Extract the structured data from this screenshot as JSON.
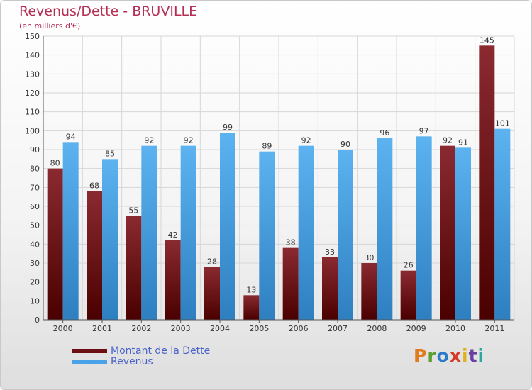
{
  "chart_data": {
    "type": "bar",
    "title": "Revenus/Dette - BRUVILLE",
    "subtitle": "(en milliers d'€)",
    "categories": [
      "2000",
      "2001",
      "2002",
      "2003",
      "2004",
      "2005",
      "2006",
      "2007",
      "2008",
      "2009",
      "2010",
      "2011"
    ],
    "series": [
      {
        "name": "Montant de la Dette",
        "color": "#7a1a1a",
        "values": [
          80,
          68,
          55,
          42,
          28,
          13,
          38,
          33,
          30,
          26,
          92,
          145
        ]
      },
      {
        "name": "Revenus",
        "color": "#4aa3e8",
        "values": [
          94,
          85,
          92,
          92,
          99,
          89,
          92,
          90,
          96,
          97,
          91,
          101
        ]
      }
    ],
    "ylim": [
      0,
      150
    ],
    "yticks": [
      0,
      10,
      20,
      30,
      40,
      50,
      60,
      70,
      80,
      90,
      100,
      110,
      120,
      130,
      140,
      150
    ],
    "grid": true,
    "legend_position": "bottom-left"
  },
  "branding": {
    "logo_text": "Proxiti",
    "logo_colors": [
      "#e07b1e",
      "#5a9e2f",
      "#2a7bc8",
      "#d43c2a",
      "#e0b21e",
      "#6a3fa0",
      "#2aa89e"
    ]
  }
}
